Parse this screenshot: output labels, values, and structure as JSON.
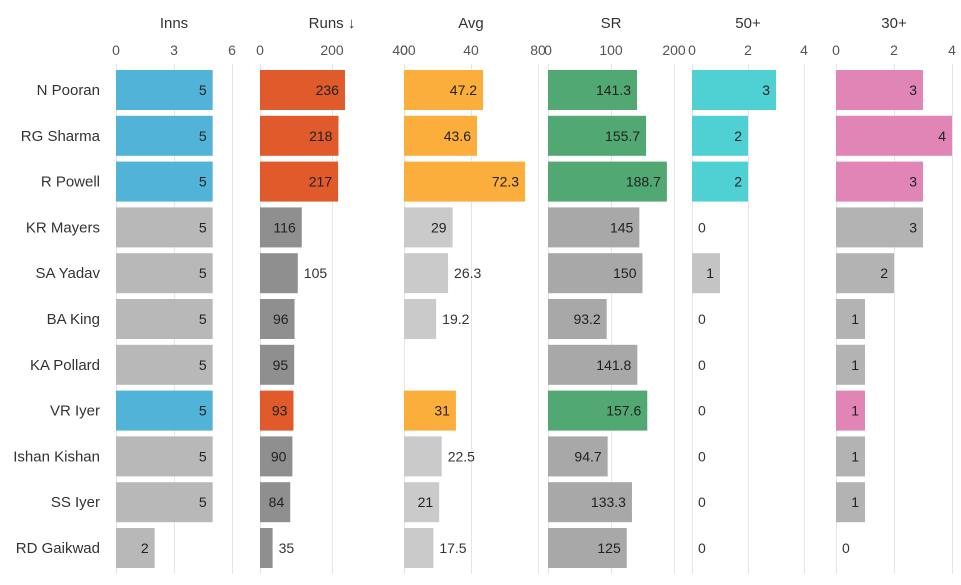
{
  "chart_data": {
    "type": "bar",
    "layout": "horizontal small multiples",
    "grid": true,
    "categories": [
      "N Pooran",
      "RG Sharma",
      "R Powell",
      "KR Mayers",
      "SA Yadav",
      "BA King",
      "KA Pollard",
      "VR Iyer",
      "Ishan Kishan",
      "SS Iyer",
      "RD Gaikwad"
    ],
    "panels": [
      {
        "key": "inns",
        "title": "Inns",
        "xlim": [
          0,
          6
        ],
        "ticks": [
          0,
          3,
          6
        ],
        "tick_labels": [
          "0",
          "3",
          "6"
        ],
        "highlight_color": "#52b3d9",
        "muted_color": "#b8b8b8",
        "values": [
          5,
          5,
          5,
          5,
          5,
          5,
          5,
          5,
          5,
          5,
          2
        ],
        "labels": [
          "5",
          "5",
          "5",
          "5",
          "5",
          "5",
          "5",
          "5",
          "5",
          "5",
          "2"
        ],
        "highlighted": [
          true,
          true,
          true,
          false,
          false,
          false,
          false,
          true,
          false,
          false,
          false
        ]
      },
      {
        "key": "runs",
        "title": "Runs ↓",
        "xlim": [
          0,
          400
        ],
        "ticks": [
          0,
          200,
          400
        ],
        "tick_labels": [
          "0",
          "200",
          "400"
        ],
        "highlight_color": "#e05a2b",
        "muted_color": "#8f8f8f",
        "values": [
          236,
          218,
          217,
          116,
          105,
          96,
          95,
          93,
          90,
          84,
          35
        ],
        "labels": [
          "236",
          "218",
          "217",
          "116",
          "105",
          "96",
          "95",
          "93",
          "90",
          "84",
          "35"
        ],
        "highlighted": [
          true,
          true,
          true,
          false,
          false,
          false,
          false,
          true,
          false,
          false,
          false
        ]
      },
      {
        "key": "avg",
        "title": "Avg",
        "xlim": [
          0,
          80
        ],
        "ticks": [
          0,
          40,
          80
        ],
        "tick_labels": [
          "0",
          "40",
          "80"
        ],
        "highlight_color": "#fbae3c",
        "muted_color": "#cacaca",
        "values": [
          47.2,
          43.6,
          72.3,
          29,
          26.3,
          19.2,
          null,
          31,
          22.5,
          21,
          17.5
        ],
        "labels": [
          "47.2",
          "43.6",
          "72.3",
          "29",
          "26.3",
          "19.2",
          "",
          "31",
          "22.5",
          "21",
          "17.5"
        ],
        "highlighted": [
          true,
          true,
          true,
          false,
          false,
          false,
          false,
          true,
          false,
          false,
          false
        ]
      },
      {
        "key": "sr",
        "title": "SR",
        "xlim": [
          0,
          200
        ],
        "ticks": [
          0,
          100,
          200
        ],
        "tick_labels": [
          "0",
          "100",
          "200"
        ],
        "highlight_color": "#52a872",
        "muted_color": "#a8a8a8",
        "values": [
          141.3,
          155.7,
          188.7,
          145,
          150,
          93.2,
          141.8,
          157.6,
          94.7,
          133.3,
          125
        ],
        "labels": [
          "141.3",
          "155.7",
          "188.7",
          "145",
          "150",
          "93.2",
          "141.8",
          "157.6",
          "94.7",
          "133.3",
          "125"
        ],
        "highlighted": [
          true,
          true,
          true,
          false,
          false,
          false,
          false,
          true,
          false,
          false,
          false
        ]
      },
      {
        "key": "fifties",
        "title": "50+",
        "xlim": [
          0,
          4
        ],
        "ticks": [
          0,
          2,
          4
        ],
        "tick_labels": [
          "0",
          "2",
          "4"
        ],
        "highlight_color": "#4fd1d4",
        "muted_color": "#c4c4c4",
        "values": [
          3,
          2,
          2,
          0,
          1,
          0,
          0,
          0,
          0,
          0,
          0
        ],
        "labels": [
          "3",
          "2",
          "2",
          "0",
          "1",
          "0",
          "0",
          "0",
          "0",
          "0",
          "0"
        ],
        "highlighted": [
          true,
          true,
          true,
          false,
          false,
          false,
          false,
          false,
          false,
          false,
          false
        ]
      },
      {
        "key": "thirties",
        "title": "30+",
        "xlim": [
          0,
          4
        ],
        "ticks": [
          0,
          2,
          4
        ],
        "tick_labels": [
          "0",
          "2",
          "4"
        ],
        "highlight_color": "#e085b5",
        "muted_color": "#b3b3b3",
        "values": [
          3,
          4,
          3,
          3,
          2,
          1,
          1,
          1,
          1,
          1,
          0
        ],
        "labels": [
          "3",
          "4",
          "3",
          "3",
          "2",
          "1",
          "1",
          "1",
          "1",
          "1",
          "0"
        ],
        "highlighted": [
          true,
          true,
          true,
          false,
          false,
          false,
          false,
          true,
          false,
          false,
          false
        ]
      }
    ]
  }
}
